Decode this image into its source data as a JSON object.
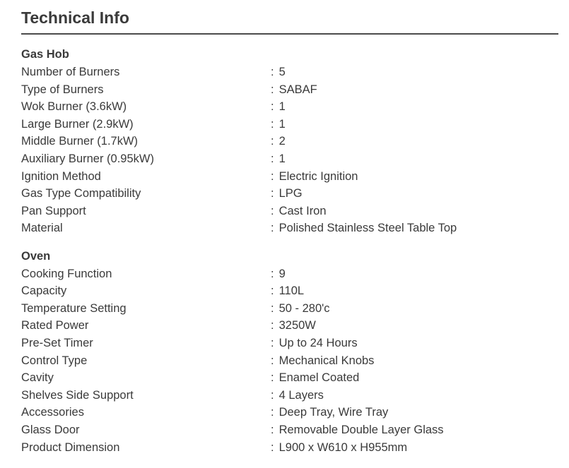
{
  "page": {
    "title": "Technical Info"
  },
  "separator": ":",
  "colors": {
    "text": "#3a3a3a",
    "divider": "#4b4b4b",
    "background": "#ffffff"
  },
  "sections": [
    {
      "heading": "Gas Hob",
      "rows": [
        {
          "label": "Number of Burners",
          "value": "5"
        },
        {
          "label": "Type of Burners",
          "value": "SABAF"
        },
        {
          "label": "Wok Burner (3.6kW)",
          "value": "1"
        },
        {
          "label": "Large Burner (2.9kW)",
          "value": "1"
        },
        {
          "label": "Middle Burner (1.7kW)",
          "value": "2"
        },
        {
          "label": "Auxiliary Burner (0.95kW)",
          "value": "1"
        },
        {
          "label": "Ignition Method",
          "value": "Electric Ignition"
        },
        {
          "label": "Gas Type Compatibility",
          "value": "LPG"
        },
        {
          "label": "Pan Support",
          "value": "Cast Iron"
        },
        {
          "label": "Material",
          "value": "Polished Stainless Steel Table Top"
        }
      ]
    },
    {
      "heading": "Oven",
      "rows": [
        {
          "label": "Cooking Function",
          "value": "9"
        },
        {
          "label": "Capacity",
          "value": "110L"
        },
        {
          "label": "Temperature Setting",
          "value": "50 - 280'c"
        },
        {
          "label": "Rated Power",
          "value": "3250W"
        },
        {
          "label": "Pre-Set Timer",
          "value": "Up to 24 Hours"
        },
        {
          "label": "Control Type",
          "value": "Mechanical Knobs"
        },
        {
          "label": "Cavity",
          "value": "Enamel Coated"
        },
        {
          "label": "Shelves Side Support",
          "value": "4 Layers"
        },
        {
          "label": "Accessories",
          "value": "Deep Tray, Wire Tray"
        },
        {
          "label": "Glass Door",
          "value": "Removable Double Layer Glass"
        },
        {
          "label": "Product Dimension",
          "value": "L900 x W610 x H955mm"
        }
      ]
    }
  ]
}
